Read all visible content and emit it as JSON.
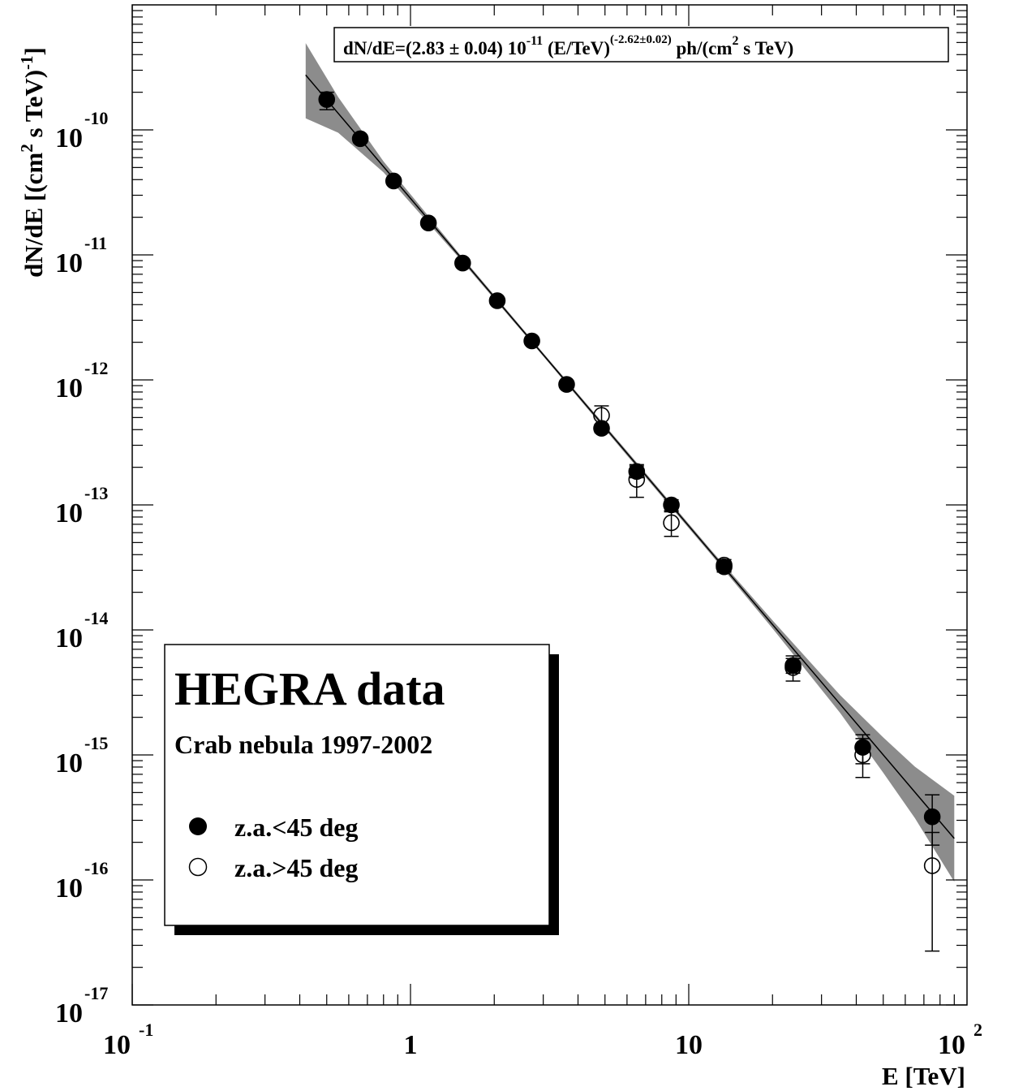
{
  "chart_data": {
    "type": "scatter",
    "xlabel": "E [TeV]",
    "ylabel": "dN/dE [(cm",
    "ylabel_parts": {
      "sup1": "2",
      "mid": " s TeV)",
      "sup2": "-1",
      "end": "]"
    },
    "x_scale": "log",
    "y_scale": "log",
    "xlim": [
      0.1,
      100
    ],
    "ylim": [
      1e-17,
      1e-09
    ],
    "x_ticks": [
      {
        "base": "10",
        "exp": "-1",
        "value": 0.1
      },
      {
        "base": "1",
        "exp": "",
        "value": 1
      },
      {
        "base": "10",
        "exp": "",
        "value": 10
      },
      {
        "base": "10",
        "exp": "2",
        "value": 100
      }
    ],
    "y_ticks": [
      {
        "base": "10",
        "exp": "-10",
        "value": 1e-10
      },
      {
        "base": "10",
        "exp": "-11",
        "value": 1e-11
      },
      {
        "base": "10",
        "exp": "-12",
        "value": 1e-12
      },
      {
        "base": "10",
        "exp": "-13",
        "value": 1e-13
      },
      {
        "base": "10",
        "exp": "-14",
        "value": 1e-14
      },
      {
        "base": "10",
        "exp": "-15",
        "value": 1e-15
      },
      {
        "base": "10",
        "exp": "-16",
        "value": 1e-16
      },
      {
        "base": "10",
        "exp": "-17",
        "value": 1e-17
      }
    ],
    "fit": {
      "norm": 2.83e-11,
      "index": -2.62,
      "x_range": [
        0.42,
        90
      ],
      "label_parts": {
        "a": "dN/dE=(2.83 ± 0.04) 10",
        "a_sup": "-11",
        "b": " (E/TeV)",
        "b_sup": "(-2.62±0.02)",
        "c": " ph/(cm",
        "c_sup": "2",
        "d": " s TeV)"
      }
    },
    "band": {
      "x": [
        0.42,
        0.55,
        0.8,
        1.5,
        3,
        6,
        12,
        20,
        35,
        50,
        65,
        90
      ],
      "rel_lower": [
        0.45,
        0.7,
        0.9,
        0.96,
        0.97,
        0.96,
        0.96,
        0.93,
        0.85,
        0.72,
        0.62,
        0.45
      ],
      "rel_upper": [
        1.8,
        1.35,
        1.1,
        1.04,
        1.03,
        1.04,
        1.04,
        1.08,
        1.18,
        1.38,
        1.6,
        2.2
      ]
    },
    "series": [
      {
        "name": "z.a.<45 deg",
        "marker": "filled-circle",
        "points": [
          {
            "x": 0.5,
            "y": 1.75e-10,
            "ylo": 1.45e-10,
            "yhi": 2e-10
          },
          {
            "x": 0.66,
            "y": 8.5e-11,
            "ylo": 7.9e-11,
            "yhi": 9.1e-11
          },
          {
            "x": 0.87,
            "y": 3.9e-11,
            "ylo": 3.7e-11,
            "yhi": 4.1e-11
          },
          {
            "x": 1.16,
            "y": 1.8e-11,
            "ylo": 1.72e-11,
            "yhi": 1.88e-11
          },
          {
            "x": 1.54,
            "y": 8.6e-12,
            "ylo": 8.2e-12,
            "yhi": 9e-12
          },
          {
            "x": 2.05,
            "y": 4.3e-12,
            "ylo": 4.1e-12,
            "yhi": 4.5e-12
          },
          {
            "x": 2.73,
            "y": 2.05e-12,
            "ylo": 1.95e-12,
            "yhi": 2.15e-12
          },
          {
            "x": 3.64,
            "y": 9.2e-13,
            "ylo": 8.7e-13,
            "yhi": 9.7e-13
          },
          {
            "x": 4.86,
            "y": 4.1e-13,
            "ylo": 3.8e-13,
            "yhi": 4.4e-13
          },
          {
            "x": 6.5,
            "y": 1.85e-13,
            "ylo": 1.65e-13,
            "yhi": 2.1e-13
          },
          {
            "x": 8.66,
            "y": 1e-13,
            "ylo": 9e-14,
            "yhi": 1.1e-13
          },
          {
            "x": 13.4,
            "y": 3.2e-14,
            "ylo": 2.9e-14,
            "yhi": 3.5e-14
          },
          {
            "x": 23.7,
            "y": 5.2e-15,
            "ylo": 4.5e-15,
            "yhi": 5.9e-15
          },
          {
            "x": 42.2,
            "y": 1.15e-15,
            "ylo": 8.5e-16,
            "yhi": 1.45e-15
          },
          {
            "x": 75,
            "y": 3.2e-16,
            "ylo": 1.9e-16,
            "yhi": 4.8e-16
          }
        ]
      },
      {
        "name": "z.a.>45 deg",
        "marker": "open-circle",
        "points": [
          {
            "x": 4.86,
            "y": 5.2e-13,
            "ylo": 4.4e-13,
            "yhi": 6.2e-13
          },
          {
            "x": 6.5,
            "y": 1.6e-13,
            "ylo": 1.15e-13,
            "yhi": 2.05e-13
          },
          {
            "x": 8.66,
            "y": 7.2e-14,
            "ylo": 5.6e-14,
            "yhi": 8.8e-14
          },
          {
            "x": 13.4,
            "y": 3.3e-14,
            "ylo": 2.95e-14,
            "yhi": 3.65e-14
          },
          {
            "x": 23.7,
            "y": 5e-15,
            "ylo": 3.9e-15,
            "yhi": 6.2e-15
          },
          {
            "x": 42.2,
            "y": 1e-15,
            "ylo": 6.6e-16,
            "yhi": 1.35e-15
          },
          {
            "x": 75,
            "y": 1.3e-16,
            "ylo": 2.7e-17,
            "yhi": 2.4e-16
          }
        ]
      }
    ],
    "legend": {
      "title": "HEGRA data",
      "subtitle": "Crab nebula 1997-2002",
      "placement": "bottom-left"
    }
  }
}
